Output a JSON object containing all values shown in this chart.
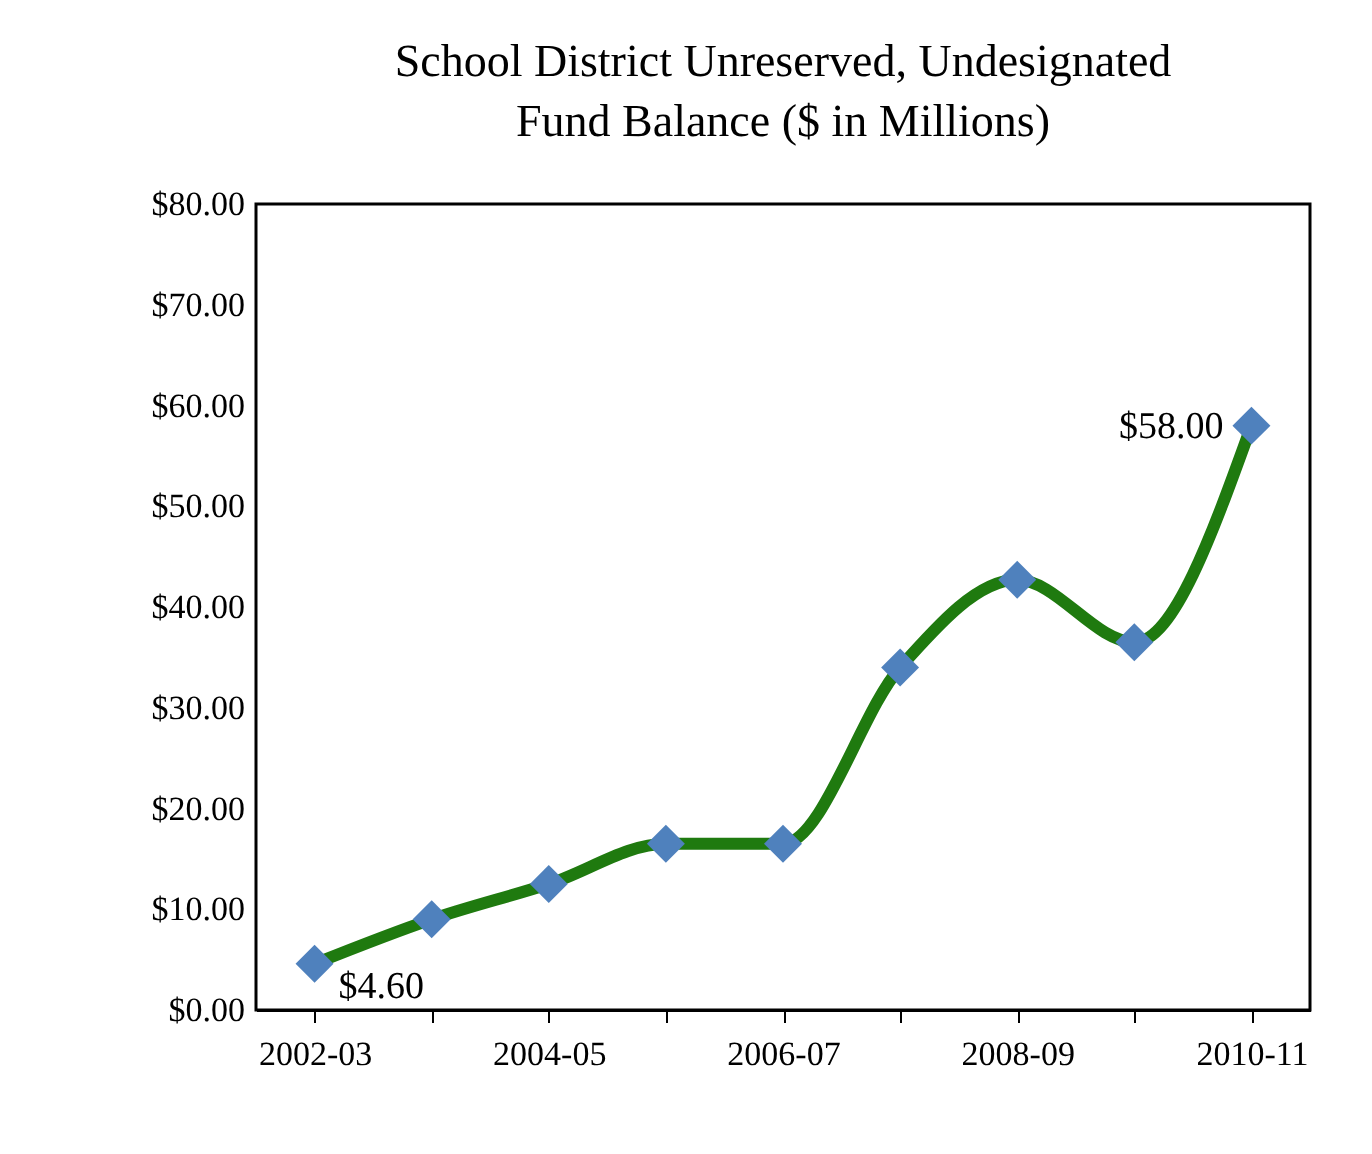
{
  "chart_data": {
    "type": "line",
    "title": "School District Unreserved, Undesignated\nFund Balance ($ in Millions)",
    "categories": [
      "2002-03",
      null,
      "2004-05",
      null,
      "2006-07",
      null,
      "2008-09",
      null,
      "2010-11"
    ],
    "series": [
      {
        "color": "#1f7a0f",
        "marker": "none",
        "values": [
          4.6,
          9,
          12.5,
          16.5,
          16.5,
          34,
          42.7,
          36.5,
          58
        ]
      },
      {
        "type": "scatter",
        "marker": "diamond",
        "color": "#4f81bd",
        "values": [
          4.6,
          9,
          12.5,
          16.5,
          16.5,
          34,
          42.7,
          36.5,
          58
        ],
        "value_labels": [
          "$4.60",
          null,
          null,
          null,
          null,
          null,
          null,
          null,
          "$58.00"
        ]
      }
    ],
    "ylim": [
      0,
      80
    ],
    "yticks": [
      {
        "value": 0,
        "label": "$0.00"
      },
      {
        "value": 10,
        "label": "$10.00"
      },
      {
        "value": 20,
        "label": "$20.00"
      },
      {
        "value": 30,
        "label": "$30.00"
      },
      {
        "value": 40,
        "label": "$40.00"
      },
      {
        "value": 50,
        "label": "$50.00"
      },
      {
        "value": 60,
        "label": "$60.00"
      },
      {
        "value": 70,
        "label": "$70.00"
      },
      {
        "value": 80,
        "label": "$80.00"
      }
    ],
    "grid": false
  }
}
